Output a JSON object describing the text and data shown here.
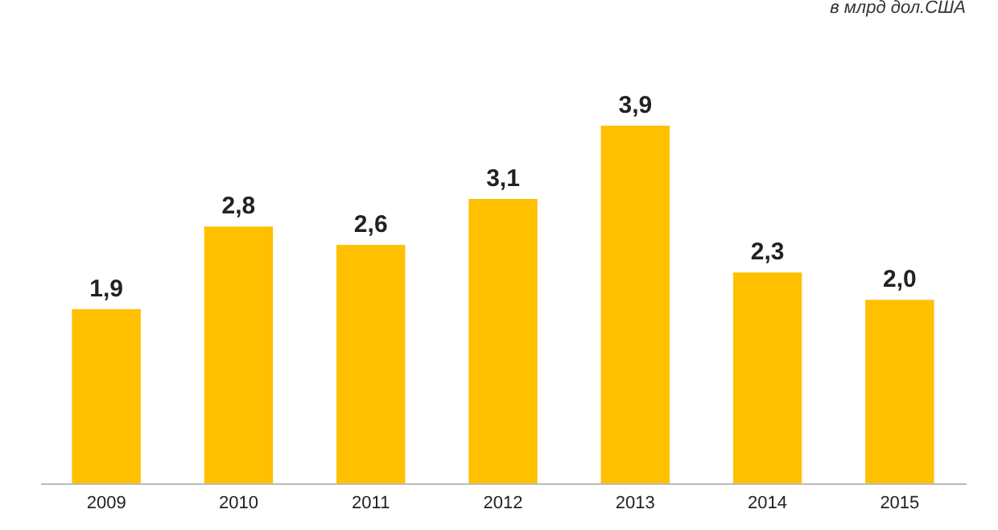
{
  "chart_data": {
    "type": "bar",
    "annotations": [
      "в млрд дол.США"
    ],
    "categories": [
      "2009",
      "2010",
      "2011",
      "2012",
      "2013",
      "2014",
      "2015"
    ],
    "values": [
      1.9,
      2.8,
      2.6,
      3.1,
      3.9,
      2.3,
      2.0
    ],
    "value_labels": [
      "1,9",
      "2,8",
      "2,6",
      "3,1",
      "3,9",
      "2,3",
      "2,0"
    ],
    "color": "#ffc000"
  }
}
